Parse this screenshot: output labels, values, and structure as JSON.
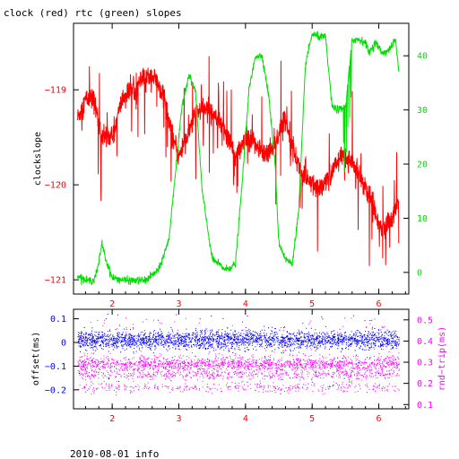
{
  "title": "clock (red) rtc (green) slopes",
  "footer": "2010-08-01 info",
  "colors": {
    "red": "#ff0000",
    "green": "#00dd00",
    "blue": "#0000ff",
    "magenta": "#ff00ff",
    "axis": "#000000"
  },
  "chart_data": [
    {
      "type": "line",
      "title": "clock (red) rtc (green) slopes",
      "xlim": [
        1.42,
        6.45
      ],
      "x_ticks": [
        2,
        3,
        4,
        5,
        6
      ],
      "x_tick_labels": [
        "2",
        "3",
        "4",
        "5",
        "6"
      ],
      "left_axis": {
        "label": "clockslope",
        "ylim": [
          -121.15,
          -118.3
        ],
        "ticks": [
          -121,
          -120,
          -119
        ],
        "tick_labels": [
          "−121",
          "−120",
          "−119"
        ],
        "color": "red"
      },
      "right_axis": {
        "label": "",
        "ylim": [
          -4,
          46
        ],
        "ticks": [
          0,
          10,
          20,
          30,
          40
        ],
        "tick_labels": [
          "0",
          "10",
          "20",
          "30",
          "40"
        ],
        "color": "green"
      },
      "series": [
        {
          "axis": "left",
          "color": "red",
          "x": [
            1.48,
            1.6,
            1.72,
            1.85,
            2.0,
            2.15,
            2.3,
            2.45,
            2.6,
            2.75,
            2.9,
            3.0,
            3.1,
            3.25,
            3.4,
            3.55,
            3.7,
            3.85,
            4.0,
            4.15,
            4.3,
            4.45,
            4.6,
            4.75,
            4.85,
            5.0,
            5.15,
            5.3,
            5.45,
            5.6,
            5.75,
            5.9,
            6.05,
            6.2,
            6.3
          ],
          "values": [
            -119.3,
            -119.1,
            -119.1,
            -119.5,
            -119.5,
            -119.1,
            -119.0,
            -118.9,
            -118.85,
            -119.0,
            -119.5,
            -119.7,
            -119.55,
            -119.25,
            -119.2,
            -119.25,
            -119.45,
            -119.7,
            -119.55,
            -119.55,
            -119.7,
            -119.55,
            -119.3,
            -119.7,
            -119.9,
            -120.0,
            -120.05,
            -119.85,
            -119.7,
            -119.75,
            -119.95,
            -120.2,
            -120.45,
            -120.35,
            -120.2
          ]
        },
        {
          "axis": "right",
          "color": "green",
          "x": [
            1.48,
            1.6,
            1.72,
            1.78,
            1.85,
            1.9,
            2.0,
            2.2,
            2.5,
            2.7,
            2.85,
            2.95,
            3.05,
            3.15,
            3.25,
            3.35,
            3.5,
            3.7,
            3.85,
            3.95,
            4.05,
            4.15,
            4.25,
            4.35,
            4.45,
            4.5,
            4.6,
            4.7,
            4.8,
            4.9,
            5.0,
            5.1,
            5.2,
            5.3,
            5.4,
            5.5,
            5.6,
            5.7,
            5.8,
            5.85,
            5.95,
            6.05,
            6.15,
            6.25,
            6.3
          ],
          "values": [
            -0.5,
            -1.5,
            -1.5,
            0.5,
            5.5,
            2.5,
            -1.0,
            -1.5,
            -1.5,
            0.5,
            6.0,
            18.5,
            31.0,
            36.5,
            33.5,
            15.0,
            2.5,
            0.5,
            1.5,
            16.5,
            33.5,
            40.0,
            40.0,
            32.5,
            19.0,
            5.5,
            2.5,
            1.5,
            11.5,
            38.5,
            44.0,
            43.5,
            43.5,
            30.5,
            30.0,
            30.5,
            43.0,
            43.0,
            42.5,
            40.5,
            42.5,
            40.5,
            41.0,
            43.0,
            37.0
          ]
        }
      ]
    },
    {
      "type": "scatter",
      "xlim": [
        1.42,
        6.45
      ],
      "x_ticks": [
        2,
        3,
        4,
        5,
        6
      ],
      "x_tick_labels": [
        "2",
        "3",
        "4",
        "5",
        "6"
      ],
      "left_axis": {
        "label": "offset(ms)",
        "ylim": [
          -0.28,
          0.14
        ],
        "ticks": [
          -0.2,
          -0.1,
          0,
          0.1
        ],
        "tick_labels": [
          "−0.2",
          "−0.1",
          "0",
          "0.1"
        ],
        "color": "blue"
      },
      "right_axis": {
        "label": "rnd−trip(ms)",
        "ylim": [
          0.08,
          0.55
        ],
        "ticks": [
          0.1,
          0.2,
          0.3,
          0.4,
          0.5
        ],
        "tick_labels": [
          "0.1",
          "0.2",
          "0.3",
          "0.4",
          "0.5"
        ],
        "color": "magenta"
      },
      "series": [
        {
          "axis": "left",
          "color": "blue",
          "center": 0.01,
          "spread": 0.035,
          "outlier_range": [
            -0.19,
            0.12
          ]
        },
        {
          "axis": "right",
          "color": "magenta",
          "bands": [
            0.29,
            0.24,
            0.18
          ],
          "outlier_max": 0.51
        }
      ]
    }
  ]
}
